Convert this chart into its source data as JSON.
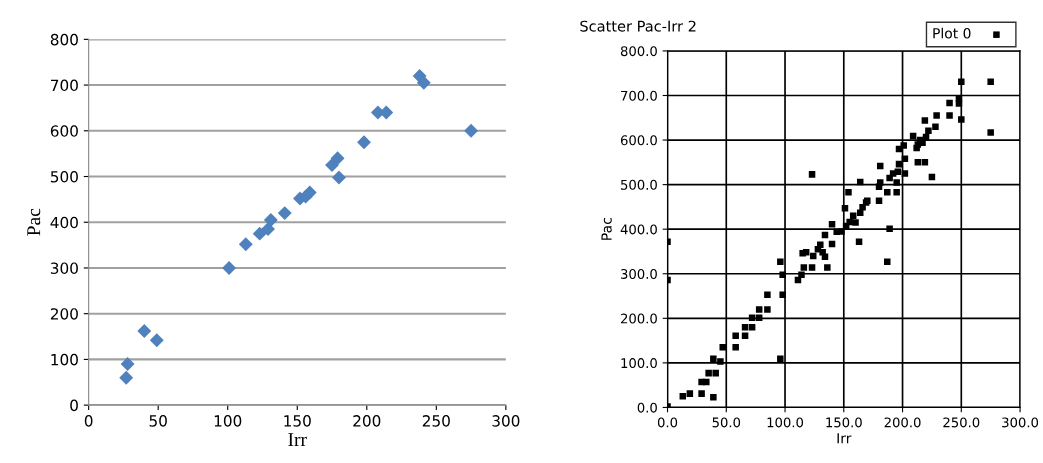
{
  "chart_data": [
    {
      "type": "scatter",
      "xlabel": "Irr",
      "ylabel": "Pac",
      "xlim": [
        0,
        300
      ],
      "ylim": [
        0,
        800
      ],
      "xticks": [
        0,
        50,
        100,
        150,
        200,
        250,
        300
      ],
      "yticks": [
        0,
        100,
        200,
        300,
        400,
        500,
        600,
        700,
        800
      ],
      "grid": "y",
      "legend": false,
      "marker": "diamond",
      "series": [
        {
          "color": "#4f81bd",
          "x": [
            27,
            28,
            40,
            49,
            101,
            113,
            123,
            129,
            131,
            141,
            152,
            156,
            159,
            175,
            179,
            180,
            198,
            208,
            214,
            238,
            241,
            275
          ],
          "values": [
            60,
            90,
            162,
            142,
            300,
            352,
            375,
            385,
            405,
            420,
            452,
            456,
            465,
            525,
            540,
            498,
            575,
            640,
            640,
            720,
            705,
            600
          ]
        }
      ]
    },
    {
      "type": "scatter",
      "title": "Scatter Pac-Irr 2",
      "xlabel": "Irr",
      "ylabel": "Pac",
      "xlim": [
        0,
        300
      ],
      "ylim": [
        0,
        800
      ],
      "xticks": [
        {
          "value": 0,
          "label": "0.0"
        },
        {
          "value": 50,
          "label": "50.0"
        },
        {
          "value": 100,
          "label": "100.0"
        },
        {
          "value": 150,
          "label": "150.0"
        },
        {
          "value": 200,
          "label": "200.0"
        },
        {
          "value": 250,
          "label": "250.0"
        },
        {
          "value": 300,
          "label": "300.0"
        }
      ],
      "yticks": [
        {
          "value": 0,
          "label": "0.0"
        },
        {
          "value": 100,
          "label": "100.0"
        },
        {
          "value": 200,
          "label": "200.0"
        },
        {
          "value": 300,
          "label": "300.0"
        },
        {
          "value": 400,
          "label": "400.0"
        },
        {
          "value": 500,
          "label": "500.0"
        },
        {
          "value": 600,
          "label": "600.0"
        },
        {
          "value": 700,
          "label": "700.0"
        },
        {
          "value": 800,
          "label": "800.0"
        }
      ],
      "grid": true,
      "legend": "top right",
      "marker": "square",
      "series": [
        {
          "name": "Plot 0",
          "color": "#000000",
          "x": [
            0,
            0,
            0,
            13,
            19,
            29,
            39,
            29,
            33,
            35,
            41,
            39,
            45,
            47,
            58,
            58,
            66,
            66,
            72,
            72,
            78,
            78,
            85,
            85,
            96,
            96,
            98,
            98,
            111,
            114,
            116,
            123,
            115,
            118,
            123,
            124,
            128,
            130,
            132,
            134,
            136,
            134,
            140,
            140,
            144,
            148,
            151,
            152,
            155,
            158,
            160,
            163,
            164,
            166,
            169,
            170,
            154,
            164,
            180,
            180,
            181,
            181,
            189,
            187,
            187,
            189,
            192,
            195,
            195,
            196,
            197,
            197,
            202,
            202,
            201,
            209,
            212,
            213,
            219,
            217,
            219,
            220,
            222,
            225,
            228,
            229,
            240,
            240,
            248,
            248,
            250,
            250,
            275,
            275,
            213,
            215
          ],
          "values": [
            2,
            372,
            286,
            25,
            31,
            31,
            23,
            57,
            57,
            77,
            77,
            109,
            103,
            135,
            135,
            161,
            161,
            180,
            180,
            201,
            201,
            220,
            220,
            253,
            109,
            327,
            298,
            253,
            286,
            298,
            314,
            314,
            346,
            348,
            523,
            340,
            355,
            365,
            348,
            338,
            314,
            387,
            367,
            411,
            394,
            395,
            447,
            407,
            416,
            430,
            415,
            372,
            437,
            449,
            460,
            464,
            483,
            506,
            464,
            495,
            505,
            542,
            401,
            327,
            483,
            515,
            525,
            483,
            505,
            529,
            546,
            580,
            525,
            558,
            588,
            609,
            582,
            550,
            550,
            594,
            644,
            607,
            621,
            517,
            630,
            655,
            655,
            683,
            693,
            682,
            731,
            646,
            731,
            617,
            590,
            600
          ]
        }
      ]
    }
  ]
}
